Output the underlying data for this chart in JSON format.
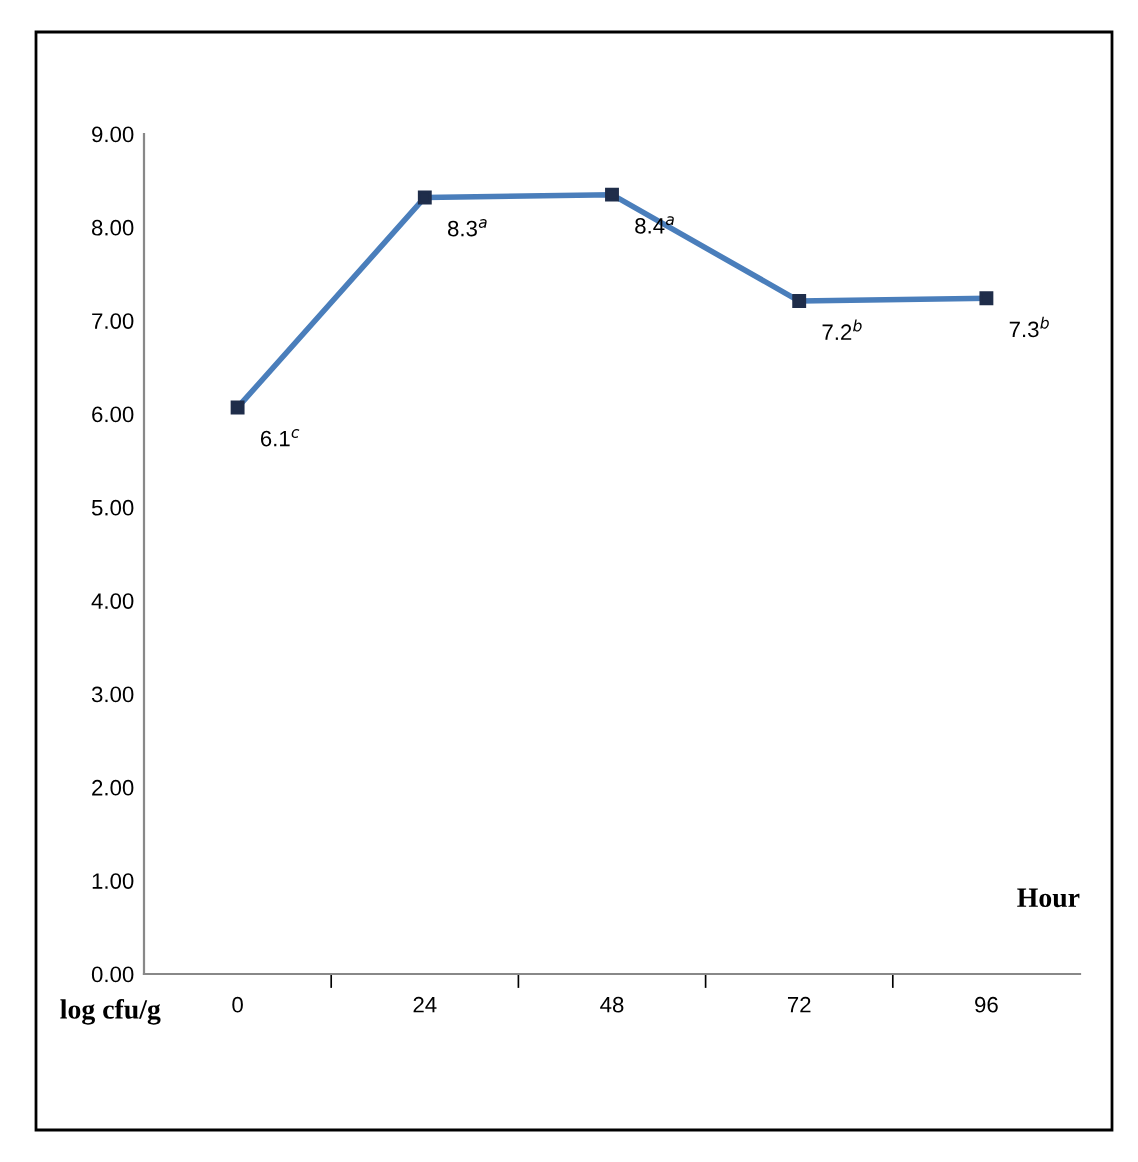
{
  "chart_data": {
    "type": "line",
    "xlabel": "Hour",
    "ylabel": "log cfu/g",
    "categories": [
      "0",
      "24",
      "48",
      "72",
      "96"
    ],
    "series": [
      {
        "color": "#4a7ebb",
        "values": [
          6.07,
          8.32,
          8.35,
          7.21,
          7.24
        ]
      }
    ],
    "ylim": [
      0,
      9
    ],
    "yticks": [
      {
        "value": 0,
        "label": "0.00"
      },
      {
        "value": 1,
        "label": "1.00"
      },
      {
        "value": 2,
        "label": "2.00"
      },
      {
        "value": 3,
        "label": "3.00"
      },
      {
        "value": 4,
        "label": "4.00"
      },
      {
        "value": 5,
        "label": "5.00"
      },
      {
        "value": 6,
        "label": "6.00"
      },
      {
        "value": 7,
        "label": "7.00"
      },
      {
        "value": 8,
        "label": "8.00"
      },
      {
        "value": 9,
        "label": "9.00"
      }
    ],
    "marker": "square",
    "line_style": "solid",
    "grid": false,
    "legend": false,
    "annotations": [
      {
        "text": "6.1$^{c}$",
        "x": "0",
        "y": 6.07
      },
      {
        "text": "8.3$^{a}$",
        "x": "24",
        "y": 8.32
      },
      {
        "text": "8.4$^{a}$",
        "x": "48",
        "y": 8.35
      },
      {
        "text": "7.2$^{b}$",
        "x": "72",
        "y": 7.21
      },
      {
        "text": "7.3$^{b}$",
        "x": "96",
        "y": 7.24
      }
    ]
  }
}
